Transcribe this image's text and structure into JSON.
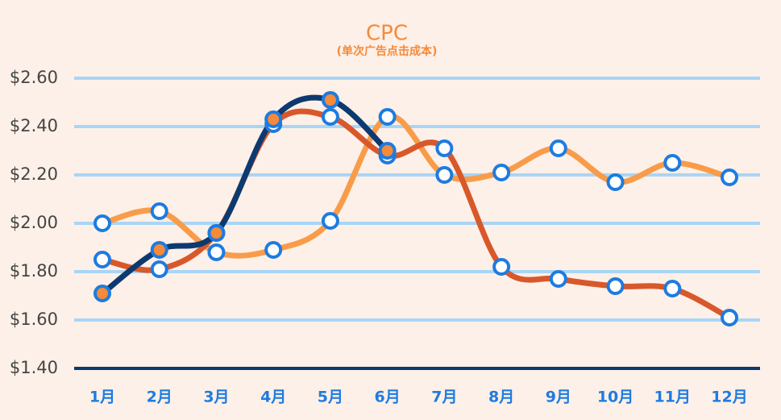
{
  "chart_data": {
    "type": "line",
    "title": "CPC",
    "subtitle": "(单次广告点击成本)",
    "categories": [
      "1月",
      "2月",
      "3月",
      "4月",
      "5月",
      "6月",
      "7月",
      "8月",
      "9月",
      "10月",
      "11月",
      "12月"
    ],
    "series": [
      {
        "color": "#f89c4a",
        "marker_fill": "#ffffff",
        "values": [
          2.0,
          2.05,
          1.88,
          1.89,
          2.01,
          2.44,
          2.2,
          2.21,
          2.31,
          2.17,
          2.25,
          2.19
        ]
      },
      {
        "color": "#d8582b",
        "marker_fill": "#ffffff",
        "values": [
          1.85,
          1.81,
          1.96,
          2.41,
          2.44,
          2.28,
          2.31,
          1.82,
          1.77,
          1.74,
          1.73,
          1.61
        ]
      },
      {
        "color": "#0c3a70",
        "marker_fill": "#f58a3a",
        "values": [
          1.71,
          1.89,
          1.96,
          2.43,
          2.51,
          2.3,
          null,
          null,
          null,
          null,
          null,
          null
        ]
      }
    ],
    "ylim": [
      1.4,
      2.6
    ],
    "yticks": [
      {
        "value": 1.4,
        "label": "$1.40"
      },
      {
        "value": 1.6,
        "label": "$1.60"
      },
      {
        "value": 1.8,
        "label": "$1.80"
      },
      {
        "value": 2.0,
        "label": "$2.00"
      },
      {
        "value": 2.2,
        "label": "$2.20"
      },
      {
        "value": 2.4,
        "label": "$2.40"
      },
      {
        "value": 2.6,
        "label": "$2.60"
      }
    ],
    "grid": true
  }
}
